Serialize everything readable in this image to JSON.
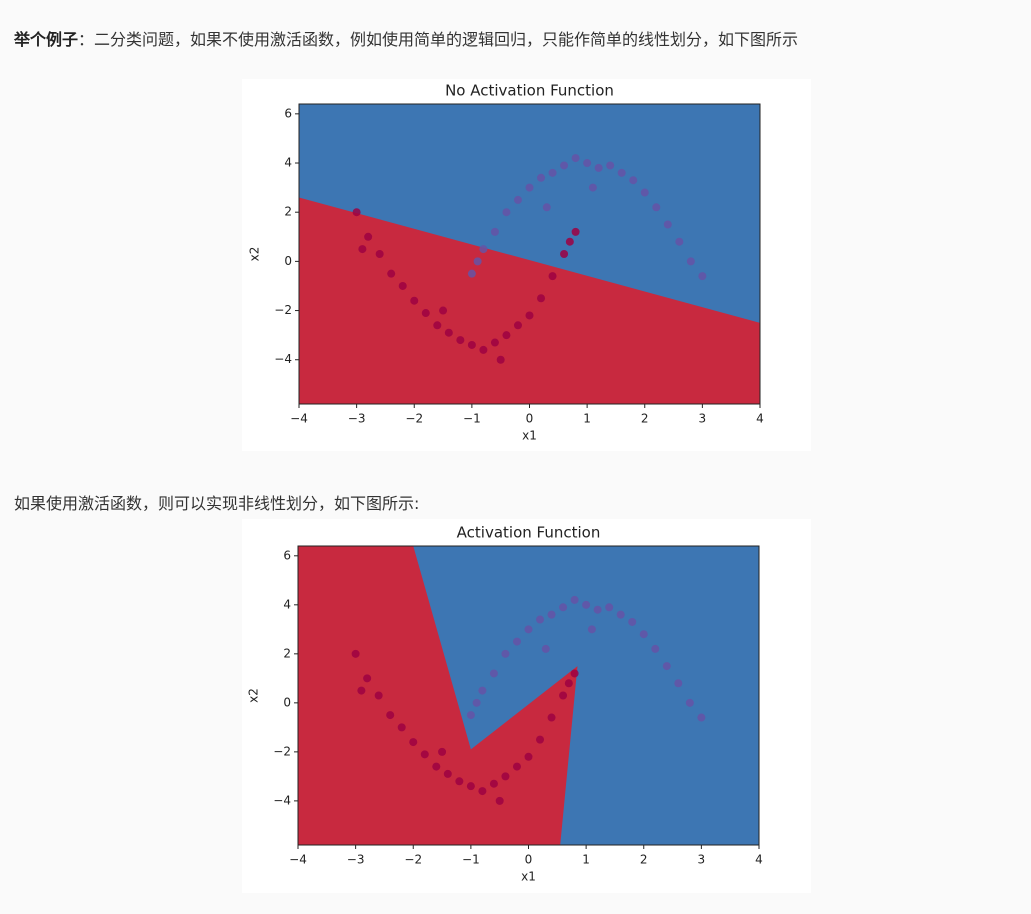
{
  "intro": {
    "bold": "举个例子",
    "text": "：二分类问题，如果不使用激活函数，例如使用简单的逻辑回归，只能作简单的线性划分，如下图所示"
  },
  "middle_text": "如果使用激活函数，则可以实现非线性划分，如下图所示:",
  "chart_data": [
    {
      "type": "scatter",
      "title": "No Activation Function",
      "x_label": "x1",
      "y_label": "x2",
      "xlim": [
        -4,
        4
      ],
      "ylim": [
        -5.8,
        6.4
      ],
      "xticks": [
        {
          "value": -4,
          "label": "−4"
        },
        {
          "value": -3,
          "label": "−3"
        },
        {
          "value": -2,
          "label": "−2"
        },
        {
          "value": -1,
          "label": "−1"
        },
        0,
        1,
        2,
        3,
        4
      ],
      "yticks": [
        {
          "value": -4,
          "label": "−4"
        },
        {
          "value": -2,
          "label": "−2"
        },
        0,
        2,
        4,
        6
      ],
      "background_color": "#3d76b3",
      "region": {
        "color": "#c8293f",
        "x": [
          -4,
          4,
          4,
          -4
        ],
        "y": [
          2.6,
          -2.5,
          -5.8,
          -5.8
        ]
      },
      "series": [
        {
          "color": "#6554a6",
          "x": [
            -1,
            -0.8,
            -0.6,
            -0.4,
            -0.2,
            0,
            0.2,
            0.4,
            0.6,
            0.8,
            1.0,
            1.2,
            1.4,
            1.6,
            1.8,
            2.0,
            2.2,
            2.4,
            2.6,
            2.8,
            3.0,
            -0.9,
            0.3,
            1.1
          ],
          "values": [
            -0.5,
            0.5,
            1.2,
            2.0,
            2.5,
            3.0,
            3.4,
            3.6,
            3.9,
            4.2,
            4.0,
            3.8,
            3.9,
            3.6,
            3.3,
            2.8,
            2.2,
            1.5,
            0.8,
            0,
            -0.6,
            0,
            2.2,
            3.0
          ]
        },
        {
          "color": "#9e0142",
          "x": [
            -3,
            -2.8,
            -2.6,
            -2.4,
            -2.2,
            -2,
            -1.8,
            -1.6,
            -1.4,
            -1.2,
            -1,
            -0.8,
            -0.6,
            -0.4,
            -0.2,
            0,
            0.2,
            0.4,
            0.6,
            0.8,
            -2.9,
            -1.5,
            -0.5,
            0.7
          ],
          "values": [
            2.0,
            1.0,
            0.3,
            -0.5,
            -1.0,
            -1.6,
            -2.1,
            -2.6,
            -2.9,
            -3.2,
            -3.4,
            -3.6,
            -3.3,
            -3.0,
            -2.6,
            -2.2,
            -1.5,
            -0.6,
            0.3,
            1.2,
            0.5,
            -2.0,
            -4.0,
            0.8
          ]
        }
      ]
    },
    {
      "type": "scatter",
      "title": "Activation Function",
      "x_label": "x1",
      "y_label": "x2",
      "xlim": [
        -4,
        4
      ],
      "ylim": [
        -5.8,
        6.4
      ],
      "xticks": [
        {
          "value": -4,
          "label": "−4"
        },
        {
          "value": -3,
          "label": "−3"
        },
        {
          "value": -2,
          "label": "−2"
        },
        {
          "value": -1,
          "label": "−1"
        },
        0,
        1,
        2,
        3,
        4
      ],
      "yticks": [
        {
          "value": -4,
          "label": "−4"
        },
        {
          "value": -2,
          "label": "−2"
        },
        0,
        2,
        4,
        6
      ],
      "background_color": "#3d76b3",
      "region": {
        "color": "#c8293f",
        "x": [
          -2,
          -1,
          0.85,
          0.55,
          -4,
          -4
        ],
        "y": [
          6.4,
          -1.9,
          1.5,
          -5.8,
          -5.8,
          6.4
        ]
      },
      "series": [
        {
          "color": "#6554a6",
          "x": [
            -1,
            -0.8,
            -0.6,
            -0.4,
            -0.2,
            0,
            0.2,
            0.4,
            0.6,
            0.8,
            1.0,
            1.2,
            1.4,
            1.6,
            1.8,
            2.0,
            2.2,
            2.4,
            2.6,
            2.8,
            3.0,
            -0.9,
            0.3,
            1.1
          ],
          "values": [
            -0.5,
            0.5,
            1.2,
            2.0,
            2.5,
            3.0,
            3.4,
            3.6,
            3.9,
            4.2,
            4.0,
            3.8,
            3.9,
            3.6,
            3.3,
            2.8,
            2.2,
            1.5,
            0.8,
            0,
            -0.6,
            0,
            2.2,
            3.0
          ]
        },
        {
          "color": "#9e0142",
          "x": [
            -3,
            -2.8,
            -2.6,
            -2.4,
            -2.2,
            -2,
            -1.8,
            -1.6,
            -1.4,
            -1.2,
            -1,
            -0.8,
            -0.6,
            -0.4,
            -0.2,
            0,
            0.2,
            0.4,
            0.6,
            0.8,
            -2.9,
            -1.5,
            -0.5,
            0.7
          ],
          "values": [
            2.0,
            1.0,
            0.3,
            -0.5,
            -1.0,
            -1.6,
            -2.1,
            -2.6,
            -2.9,
            -3.2,
            -3.4,
            -3.6,
            -3.3,
            -3.0,
            -2.6,
            -2.2,
            -1.5,
            -0.6,
            0.3,
            1.2,
            0.5,
            -2.0,
            -4.0,
            0.8
          ]
        }
      ]
    }
  ]
}
